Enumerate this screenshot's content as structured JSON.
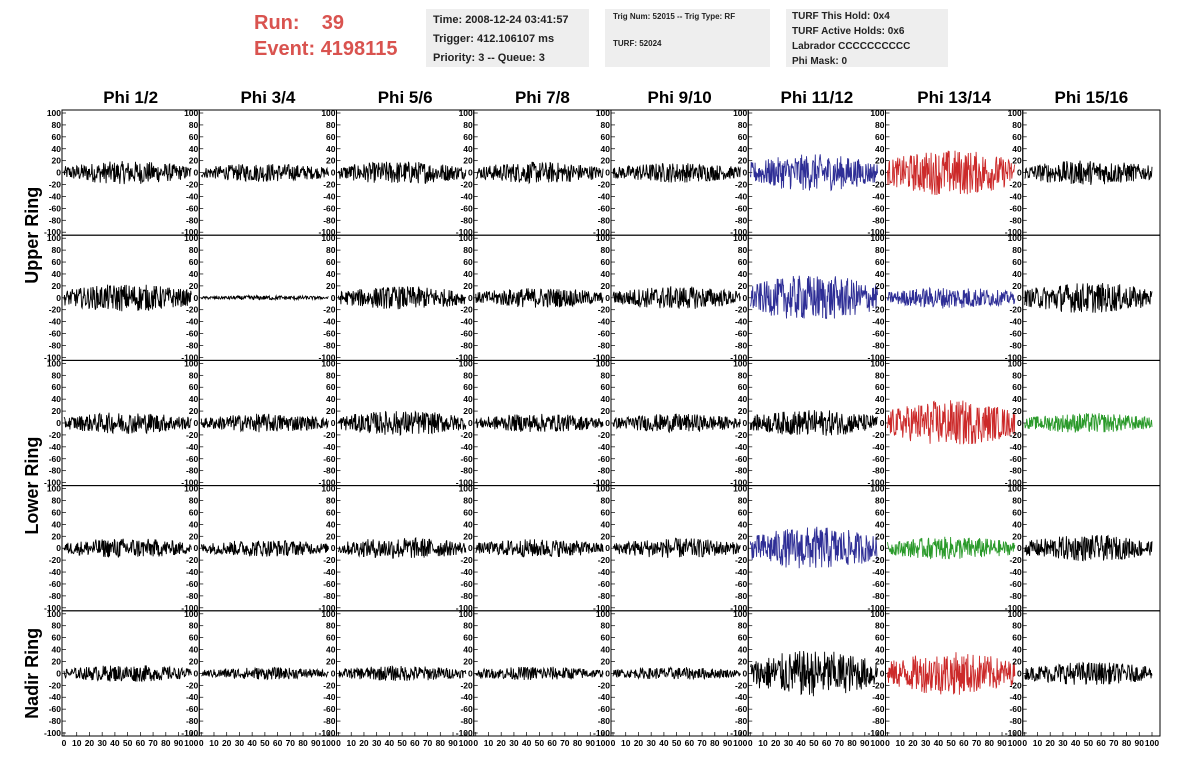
{
  "header": {
    "run_label": "Run:",
    "run_value": "39",
    "event_label": "Event:",
    "event_value": "4198115",
    "box1": [
      "Time: 2008-12-24 03:41:57",
      "Trigger: 412.106107 ms",
      "Priority: 3 -- Queue: 3"
    ],
    "box2": [
      "Trig Num: 52015 -- Trig Type: RF",
      "TURF: 52024"
    ],
    "box3": [
      "TURF This Hold: 0x4",
      "TURF Active Holds: 0x6",
      "Labrador CCCCCCCCCC",
      "Phi Mask: 0"
    ]
  },
  "colors": {
    "black": "#000000",
    "blue": "#2e2e96",
    "red": "#cc2a2a",
    "green": "#2a9a2a",
    "header_red": "#d9534f",
    "box_bg": "#eeeeee"
  },
  "chart_data": {
    "type": "line",
    "columns": [
      "Phi 1/2",
      "Phi 3/4",
      "Phi 5/6",
      "Phi 7/8",
      "Phi 9/10",
      "Phi 11/12",
      "Phi 13/14",
      "Phi 15/16"
    ],
    "ring_labels": [
      {
        "text": "Upper Ring",
        "rows": [
          0,
          1
        ]
      },
      {
        "text": "Lower Ring",
        "rows": [
          2,
          3
        ]
      },
      {
        "text": "Nadir Ring",
        "rows": [
          4
        ]
      }
    ],
    "xlim": [
      0,
      100
    ],
    "ylim": [
      -100,
      100
    ],
    "x_ticks": [
      0,
      10,
      20,
      30,
      40,
      50,
      60,
      70,
      80,
      90,
      100
    ],
    "y_ticks": [
      100,
      80,
      60,
      40,
      20,
      0,
      -20,
      -40,
      -60,
      -80,
      -100
    ],
    "panels": [
      [
        {
          "color": "black",
          "amp": 15
        },
        {
          "color": "black",
          "amp": 12
        },
        {
          "color": "black",
          "amp": 15
        },
        {
          "color": "black",
          "amp": 14
        },
        {
          "color": "black",
          "amp": 13
        },
        {
          "color": "blue",
          "amp": 24
        },
        {
          "color": "red",
          "amp": 30
        },
        {
          "color": "black",
          "amp": 16
        }
      ],
      [
        {
          "color": "black",
          "amp": 18
        },
        {
          "color": "black",
          "amp": 3
        },
        {
          "color": "black",
          "amp": 15
        },
        {
          "color": "black",
          "amp": 13
        },
        {
          "color": "black",
          "amp": 15
        },
        {
          "color": "blue",
          "amp": 30
        },
        {
          "color": "blue",
          "amp": 14
        },
        {
          "color": "black",
          "amp": 20
        }
      ],
      [
        {
          "color": "black",
          "amp": 14
        },
        {
          "color": "black",
          "amp": 12
        },
        {
          "color": "black",
          "amp": 16
        },
        {
          "color": "black",
          "amp": 12
        },
        {
          "color": "black",
          "amp": 12
        },
        {
          "color": "black",
          "amp": 17
        },
        {
          "color": "red",
          "amp": 30
        },
        {
          "color": "green",
          "amp": 13
        }
      ],
      [
        {
          "color": "black",
          "amp": 13
        },
        {
          "color": "black",
          "amp": 11
        },
        {
          "color": "black",
          "amp": 14
        },
        {
          "color": "black",
          "amp": 12
        },
        {
          "color": "black",
          "amp": 13
        },
        {
          "color": "blue",
          "amp": 28
        },
        {
          "color": "green",
          "amp": 15
        },
        {
          "color": "black",
          "amp": 17
        }
      ],
      [
        {
          "color": "black",
          "amp": 11
        },
        {
          "color": "black",
          "amp": 8
        },
        {
          "color": "black",
          "amp": 10
        },
        {
          "color": "black",
          "amp": 9
        },
        {
          "color": "black",
          "amp": 8
        },
        {
          "color": "black",
          "amp": 30
        },
        {
          "color": "red",
          "amp": 28
        },
        {
          "color": "black",
          "amp": 15
        }
      ]
    ]
  }
}
